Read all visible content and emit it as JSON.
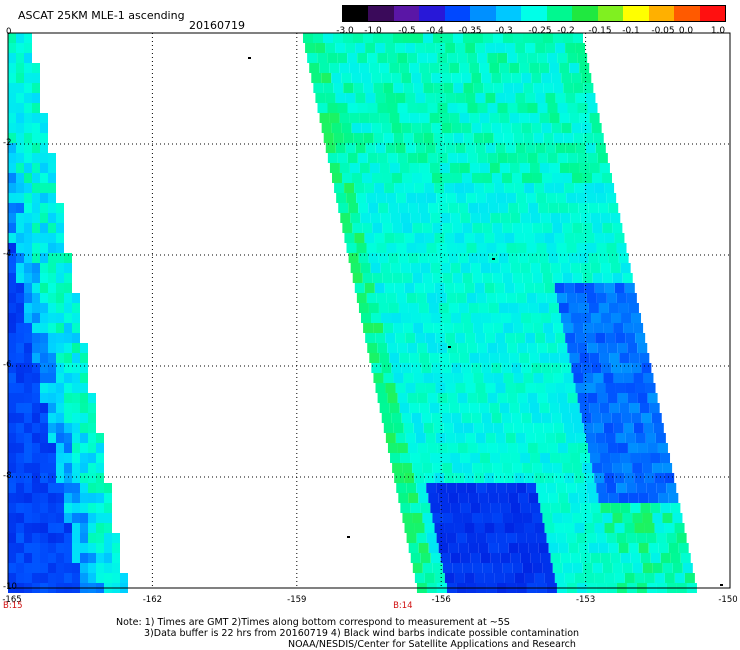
{
  "title": "ASCAT 25KM MLE-1 ascending",
  "date": "20160719",
  "colorbar": {
    "labels": [
      "-3.0",
      "-1.0",
      "-0.5",
      "-0.4",
      "-0.35",
      "-0.3",
      "-0.25",
      "-0.2",
      "-0.15",
      "-0.1",
      "-0.05",
      "0.0",
      "1.0"
    ],
    "colors": [
      "#000000",
      "#3a0a5a",
      "#5a16a6",
      "#2818d8",
      "#0048ff",
      "#0090ff",
      "#00c8ff",
      "#00ffe8",
      "#00f890",
      "#20e840",
      "#80f020",
      "#ffff00",
      "#ffb000",
      "#ff5a00",
      "#ff1010"
    ]
  },
  "axes": {
    "y_ticks": [
      "0",
      "-2",
      "-4",
      "-6",
      "-8",
      "-10"
    ],
    "x_ticks": [
      "-165",
      "-162",
      "-159",
      "-156",
      "-153",
      "-150"
    ],
    "lon_range": [
      -165,
      -150
    ],
    "lat_range": [
      -10,
      0
    ],
    "grid": true
  },
  "time_labels": [
    {
      "text": "B:15",
      "lon": -165
    },
    {
      "text": "B:14",
      "lon": -157
    }
  ],
  "notes": [
    "Note: 1) Times are GMT 2)Times along bottom correspond to measurement at ~5S",
    "3)Data buffer is 22 hrs from 20160719 4) Black wind barbs indicate possible contamination",
    "NOAA/NESDIS/Center for Satellite Applications and Research"
  ]
}
